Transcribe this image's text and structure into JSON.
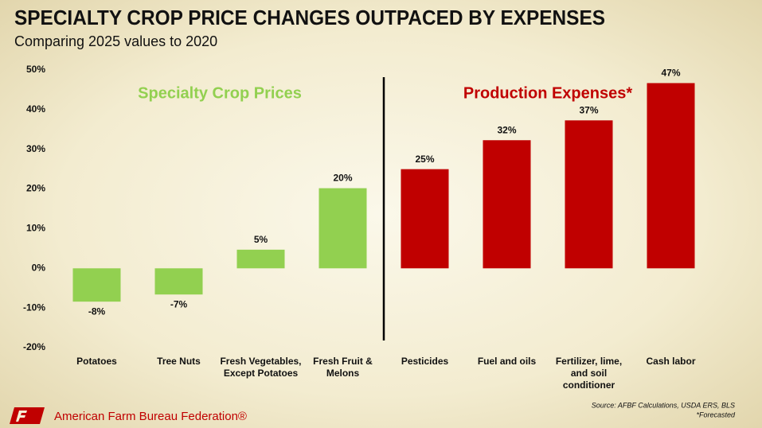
{
  "chart_data": {
    "type": "bar",
    "title": "SPECIALTY CROP PRICE CHANGES OUTPACED BY EXPENSES",
    "subtitle": "Comparing 2025 values to 2020",
    "group_labels": [
      {
        "text": "Specialty Crop Prices",
        "color": "#92d050"
      },
      {
        "text": "Production Expenses*",
        "color": "#c00000"
      }
    ],
    "categories": [
      "Potatoes",
      "Tree Nuts",
      "Fresh Vegetables, Except Potatoes",
      "Fresh Fruit & Melons",
      "Pesticides",
      "Fuel and oils",
      "Fertilizer, lime, and soil conditioner",
      "Cash labor"
    ],
    "values": [
      -8.4,
      -6.6,
      4.7,
      20.2,
      25,
      32.3,
      37.3,
      46.7
    ],
    "value_labels": [
      "-8%",
      "-7%",
      "5%",
      "20%",
      "25%",
      "32%",
      "37%",
      "47%"
    ],
    "colors": [
      "#92d050",
      "#92d050",
      "#92d050",
      "#92d050",
      "#c00000",
      "#c00000",
      "#c00000",
      "#c00000"
    ],
    "ylim": [
      -20,
      50
    ],
    "yticks": [
      {
        "value": -20,
        "label": "-20%"
      },
      {
        "value": -10,
        "label": "-10%"
      },
      {
        "value": 0,
        "label": "0%"
      },
      {
        "value": 10,
        "label": "10%"
      },
      {
        "value": 20,
        "label": "20%"
      },
      {
        "value": 30,
        "label": "30%"
      },
      {
        "value": 40,
        "label": "40%"
      },
      {
        "value": 50,
        "label": "50%"
      }
    ],
    "grid": false,
    "source": "Source: AFBF Calculations, USDA ERS, BLS",
    "footnote": "*Forecasted",
    "organization": "American Farm Bureau Federation®"
  }
}
